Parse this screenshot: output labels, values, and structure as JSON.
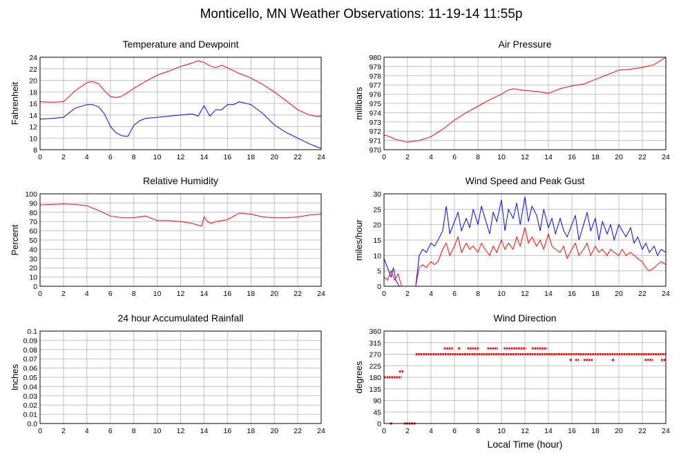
{
  "page": {
    "title": "Monticello, MN Weather Observations: 11-19-14 11:55p",
    "xlabel": "Local Time (hour)"
  },
  "colors": {
    "series_red": "#ff0000",
    "series_blue": "#0000ff",
    "grid": "#c0c0c0",
    "axis": "#000000"
  },
  "chart_data": [
    {
      "id": "temperature",
      "type": "line",
      "title": "Temperature and Dewpoint",
      "ylabel": "Fahrenheit",
      "xlim": [
        0,
        24
      ],
      "ylim": [
        8,
        24
      ],
      "xticks": [
        0,
        2,
        4,
        6,
        8,
        10,
        12,
        14,
        16,
        18,
        20,
        22,
        24
      ],
      "yticks": [
        8,
        10,
        12,
        14,
        16,
        18,
        20,
        22,
        24
      ],
      "grid": true,
      "series": [
        {
          "color": "#ff0000",
          "x": [
            0,
            1,
            2,
            3,
            4,
            4.5,
            5,
            5.5,
            6,
            6.5,
            7,
            7.5,
            8,
            9,
            10,
            11,
            12,
            13,
            13.5,
            14,
            14.5,
            15,
            15.5,
            16,
            17,
            18,
            19,
            20,
            21,
            22,
            23,
            23.5,
            24
          ],
          "y": [
            16.3,
            16.2,
            16.3,
            18.2,
            19.6,
            19.8,
            19.4,
            18.2,
            17.2,
            17.0,
            17.3,
            17.9,
            18.6,
            19.8,
            20.9,
            21.6,
            22.4,
            23.0,
            23.4,
            23.1,
            22.5,
            22.2,
            22.6,
            22.2,
            21.2,
            20.4,
            19.3,
            18.0,
            16.5,
            14.9,
            14.0,
            13.8,
            13.8
          ]
        },
        {
          "color": "#0000ff",
          "x": [
            0,
            1,
            2,
            3,
            4,
            4.5,
            5,
            5.5,
            6,
            6.5,
            7,
            7.5,
            8,
            8.5,
            9,
            10,
            11,
            12,
            13,
            13.5,
            14,
            14.5,
            15,
            15.5,
            16,
            16.5,
            17,
            18,
            19,
            20,
            21,
            22,
            23,
            23.5,
            24
          ],
          "y": [
            13.3,
            13.4,
            13.6,
            15.2,
            15.8,
            15.8,
            15.4,
            14.2,
            12.0,
            10.9,
            10.4,
            10.3,
            12.2,
            13.0,
            13.4,
            13.6,
            13.8,
            14.0,
            14.2,
            13.8,
            15.6,
            13.8,
            14.9,
            14.9,
            15.8,
            15.8,
            16.3,
            15.8,
            14.3,
            12.3,
            11.0,
            10.0,
            9.0,
            8.6,
            8.2
          ]
        }
      ]
    },
    {
      "id": "pressure",
      "type": "line",
      "title": "Air Pressure",
      "ylabel": "millibars",
      "xlim": [
        0,
        24
      ],
      "ylim": [
        970,
        980
      ],
      "xticks": [
        0,
        2,
        4,
        6,
        8,
        10,
        12,
        14,
        16,
        18,
        20,
        22,
        24
      ],
      "yticks": [
        970,
        971,
        972,
        973,
        974,
        975,
        976,
        977,
        978,
        979,
        980
      ],
      "grid": true,
      "series": [
        {
          "color": "#ff0000",
          "x": [
            0,
            0.5,
            1,
            2,
            3,
            4,
            5,
            6,
            7,
            8,
            9,
            10,
            10.5,
            11,
            12,
            13,
            14,
            15,
            16,
            17,
            18,
            19,
            20,
            21,
            22,
            23,
            24
          ],
          "y": [
            971.6,
            971.4,
            971.1,
            970.8,
            971.0,
            971.4,
            972.2,
            973.2,
            974.0,
            974.7,
            975.4,
            976.0,
            976.4,
            976.6,
            976.4,
            976.3,
            976.1,
            976.6,
            976.9,
            977.1,
            977.6,
            978.1,
            978.6,
            978.7,
            978.9,
            979.2,
            980.0
          ]
        }
      ]
    },
    {
      "id": "humidity",
      "type": "line",
      "title": "Relative Humidity",
      "ylabel": "Percent",
      "xlim": [
        0,
        24
      ],
      "ylim": [
        0,
        100
      ],
      "xticks": [
        0,
        2,
        4,
        6,
        8,
        10,
        12,
        14,
        16,
        18,
        20,
        22,
        24
      ],
      "yticks": [
        0,
        10,
        20,
        30,
        40,
        50,
        60,
        70,
        80,
        90,
        100
      ],
      "grid": true,
      "series": [
        {
          "color": "#ff0000",
          "x": [
            0,
            1,
            2,
            3,
            4,
            5,
            5.5,
            6,
            7,
            8,
            9,
            10,
            11,
            12,
            13,
            13.5,
            13.8,
            14,
            14.3,
            14.6,
            15,
            16,
            17,
            18,
            19,
            20,
            21,
            22,
            23,
            24
          ],
          "y": [
            88,
            88.5,
            89,
            88.5,
            87,
            82,
            79,
            76,
            74,
            74,
            76,
            71,
            71,
            70,
            68,
            66,
            65,
            75,
            70,
            68,
            70,
            72,
            79,
            78,
            75,
            74,
            74,
            75,
            77,
            78
          ]
        }
      ]
    },
    {
      "id": "wind_speed",
      "type": "line",
      "title": "Wind Speed and Peak Gust",
      "ylabel": "miles/hour",
      "xlim": [
        0,
        24
      ],
      "ylim": [
        0,
        30
      ],
      "xticks": [
        0,
        2,
        4,
        6,
        8,
        10,
        12,
        14,
        16,
        18,
        20,
        22,
        24
      ],
      "yticks": [
        0,
        5,
        10,
        15,
        20,
        25,
        30
      ],
      "grid": true,
      "series": [
        {
          "color": "#0000ff",
          "x": [
            0,
            0.2,
            0.4,
            0.6,
            0.8,
            1.0,
            1.3,
            1.6,
            2.0,
            2.4,
            2.7,
            3.0,
            3.3,
            3.6,
            4.0,
            4.3,
            4.6,
            5.0,
            5.3,
            5.6,
            6.0,
            6.3,
            6.6,
            7.0,
            7.3,
            7.6,
            8.0,
            8.3,
            8.6,
            9.0,
            9.3,
            9.6,
            10.0,
            10.3,
            10.6,
            11.0,
            11.3,
            11.6,
            12.0,
            12.3,
            12.6,
            13.0,
            13.3,
            13.6,
            14.0,
            14.3,
            14.6,
            15.0,
            15.3,
            15.6,
            16.0,
            16.3,
            16.6,
            17.0,
            17.3,
            17.6,
            18.0,
            18.3,
            18.6,
            19.0,
            19.3,
            19.6,
            20.0,
            20.3,
            20.6,
            21.0,
            21.3,
            21.6,
            22.0,
            22.3,
            22.6,
            23.0,
            23.3,
            23.6,
            24.0
          ],
          "y": [
            9,
            7,
            5,
            3,
            6,
            2,
            0,
            0,
            0,
            0,
            0,
            10,
            12,
            11,
            14,
            13,
            15,
            18,
            26,
            17,
            21,
            24,
            18,
            22,
            19,
            25,
            20,
            26,
            22,
            17,
            24,
            21,
            28,
            18,
            25,
            22,
            27,
            20,
            29,
            21,
            26,
            23,
            18,
            25,
            19,
            22,
            17,
            22,
            18,
            16,
            20,
            23,
            15,
            20,
            24,
            18,
            22,
            15,
            21,
            17,
            20,
            15,
            20,
            18,
            16,
            19,
            14,
            16,
            12,
            14,
            11,
            13,
            10,
            12,
            11
          ]
        },
        {
          "color": "#ff0000",
          "x": [
            0,
            0.3,
            0.6,
            0.9,
            1.2,
            1.5,
            1.8,
            2.1,
            2.4,
            2.7,
            3.0,
            3.3,
            3.6,
            4.0,
            4.3,
            4.6,
            5.0,
            5.3,
            5.6,
            6.0,
            6.3,
            6.6,
            7.0,
            7.3,
            7.6,
            8.0,
            8.3,
            8.6,
            9.0,
            9.3,
            9.6,
            10.0,
            10.3,
            10.6,
            11.0,
            11.3,
            11.6,
            12.0,
            12.3,
            12.6,
            13.0,
            13.3,
            13.6,
            14.0,
            14.3,
            14.6,
            15.0,
            15.3,
            15.6,
            16.0,
            16.3,
            16.6,
            17.0,
            17.3,
            17.6,
            18.0,
            18.3,
            18.6,
            19.0,
            19.3,
            19.6,
            20.0,
            20.3,
            20.6,
            21.0,
            21.3,
            21.6,
            22.0,
            22.3,
            22.6,
            23.0,
            23.3,
            23.6,
            24.0
          ],
          "y": [
            3,
            2,
            5,
            2,
            4,
            0,
            0,
            0,
            0,
            0,
            6,
            7,
            6,
            8,
            7,
            8,
            12,
            14,
            10,
            13,
            16,
            11,
            14,
            12,
            13,
            11,
            14,
            12,
            10,
            13,
            11,
            15,
            12,
            14,
            12,
            16,
            13,
            19,
            14,
            16,
            13,
            15,
            12,
            17,
            13,
            12,
            11,
            13,
            9,
            12,
            14,
            10,
            12,
            14,
            10,
            13,
            11,
            12,
            10,
            12,
            11,
            10,
            12,
            10,
            11,
            10,
            9,
            8,
            6,
            5,
            6,
            7,
            8,
            7
          ]
        }
      ]
    },
    {
      "id": "rainfall",
      "type": "line",
      "title": "24 hour Accumulated Rainfall",
      "ylabel": "Inches",
      "xlim": [
        0,
        24
      ],
      "ylim": [
        0,
        0.1
      ],
      "xticks": [
        0,
        2,
        4,
        6,
        8,
        10,
        12,
        14,
        16,
        18,
        20,
        22,
        24
      ],
      "yticks": [
        "0.0",
        "0.01",
        "0.02",
        "0.03",
        "0.04",
        "0.05",
        "0.06",
        "0.07",
        "0.08",
        "0.09",
        "0.1"
      ],
      "grid": true,
      "series": [
        {
          "color": "#ff0000",
          "x": [
            0,
            24
          ],
          "y": [
            0,
            0
          ]
        }
      ]
    },
    {
      "id": "wind_direction",
      "type": "scatter",
      "title": "Wind Direction",
      "ylabel": "degrees",
      "xlim": [
        0,
        24
      ],
      "ylim": [
        0,
        360
      ],
      "xticks": [
        0,
        2,
        4,
        6,
        8,
        10,
        12,
        14,
        16,
        18,
        20,
        22,
        24
      ],
      "yticks": [
        0,
        45,
        90,
        135,
        180,
        225,
        270,
        315,
        360
      ],
      "grid": true,
      "series": [
        {
          "color": "#ff0000",
          "ranges": [
            {
              "x0": 0.0,
              "x1": 1.5,
              "y": 180
            },
            {
              "x0": 1.3,
              "x1": 1.7,
              "y": 202.5
            },
            {
              "x0": 1.7,
              "x1": 2.7,
              "y": 0
            },
            {
              "x0": 2.7,
              "x1": 24.0,
              "y": 270
            },
            {
              "x0": 5.1,
              "x1": 5.9,
              "y": 292.5
            },
            {
              "x0": 7.1,
              "x1": 8.1,
              "y": 292.5
            },
            {
              "x0": 8.8,
              "x1": 9.7,
              "y": 292.5
            },
            {
              "x0": 10.2,
              "x1": 12.1,
              "y": 292.5
            },
            {
              "x0": 12.6,
              "x1": 13.9,
              "y": 292.5
            },
            {
              "x0": 16.3,
              "x1": 16.6,
              "y": 247.5
            },
            {
              "x0": 17.0,
              "x1": 17.8,
              "y": 247.5
            },
            {
              "x0": 22.2,
              "x1": 22.9,
              "y": 247.5
            },
            {
              "x0": 23.6,
              "x1": 24.0,
              "y": 247.5
            }
          ],
          "points": [
            [
              0.6,
              0
            ],
            [
              6.4,
              292.5
            ],
            [
              19.5,
              247.5
            ],
            [
              15.9,
              247.5
            ]
          ]
        }
      ]
    }
  ]
}
